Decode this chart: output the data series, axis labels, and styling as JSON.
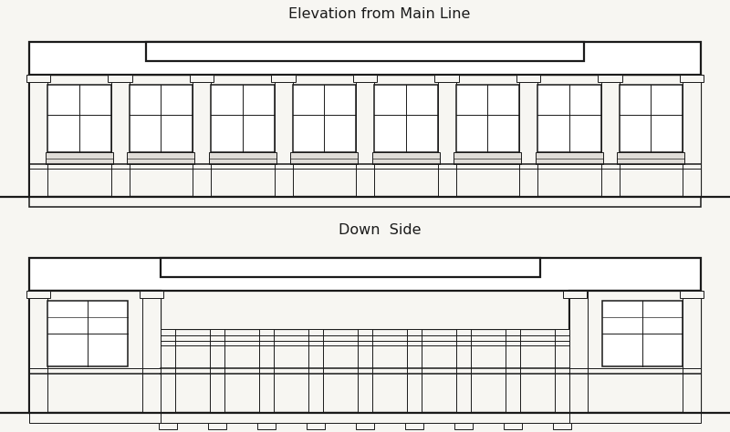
{
  "bg_color": "#f7f6f2",
  "line_color": "#1a1a1a",
  "title1": "Elevation from Main Line",
  "title2": "Down  Side",
  "title_fontsize": 11.5,
  "fig_width": 8.0,
  "fig_height": 4.74,
  "lw_main": 1.6,
  "lw_med": 1.1,
  "lw_thin": 0.7
}
